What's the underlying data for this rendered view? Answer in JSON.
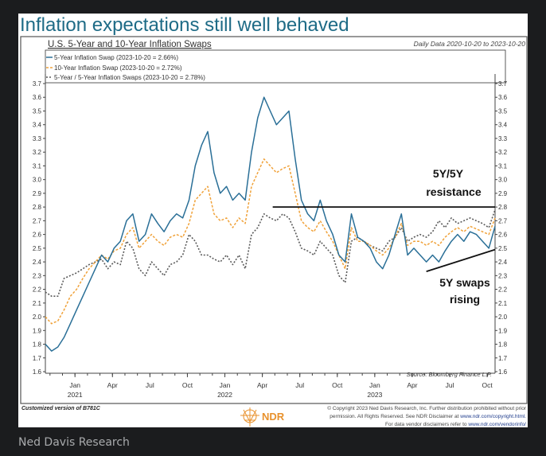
{
  "page": {
    "title": "Inflation expectations still well behaved",
    "caption": "Ned Davis Research",
    "colors": {
      "title": "#1e6b86",
      "five_year": "#2a6f97",
      "ten_year": "#f0a23a",
      "five_by_five": "#5a5a5a",
      "logo": "#e8912c",
      "link": "#1f3c8c"
    }
  },
  "chart_data": {
    "type": "line",
    "title": "U.S. 5-Year and 10-Year Inflation Swaps",
    "subtitle": "Daily Data 2020-10-20 to 2023-10-20",
    "xlabel": "",
    "ylabel": "",
    "ylim": [
      1.6,
      3.7
    ],
    "yticks": [
      "1.6",
      "1.7",
      "1.8",
      "1.9",
      "2.0",
      "2.1",
      "2.2",
      "2.3",
      "2.4",
      "2.5",
      "2.6",
      "2.7",
      "2.8",
      "2.9",
      "3.0",
      "3.1",
      "3.2",
      "3.3",
      "3.4",
      "3.5",
      "3.6",
      "3.7"
    ],
    "x_start": "2020-10-20",
    "x_step_months": 0.5,
    "x_range_months": [
      0,
      36
    ],
    "xticks": [
      {
        "month": "Jan",
        "year": "2021",
        "offset_months": 2.37
      },
      {
        "month": "Apr",
        "year": "",
        "offset_months": 5.37
      },
      {
        "month": "Jul",
        "year": "",
        "offset_months": 8.37
      },
      {
        "month": "Oct",
        "year": "",
        "offset_months": 11.37
      },
      {
        "month": "Jan",
        "year": "2022",
        "offset_months": 14.37
      },
      {
        "month": "Apr",
        "year": "",
        "offset_months": 17.37
      },
      {
        "month": "Jul",
        "year": "",
        "offset_months": 20.37
      },
      {
        "month": "Oct",
        "year": "",
        "offset_months": 23.37
      },
      {
        "month": "Jan",
        "year": "2023",
        "offset_months": 26.37
      },
      {
        "month": "Apr",
        "year": "",
        "offset_months": 29.37
      },
      {
        "month": "Jul",
        "year": "",
        "offset_months": 32.37
      },
      {
        "month": "Oct",
        "year": "",
        "offset_months": 35.37
      }
    ],
    "series": [
      {
        "name": "5-Year Inflation Swap (2023-10-20 = 2.66%)",
        "style": "solid",
        "values": [
          1.8,
          1.75,
          1.78,
          1.85,
          1.95,
          2.05,
          2.15,
          2.25,
          2.35,
          2.45,
          2.4,
          2.5,
          2.55,
          2.7,
          2.75,
          2.55,
          2.6,
          2.75,
          2.68,
          2.62,
          2.7,
          2.75,
          2.72,
          2.85,
          3.1,
          3.25,
          3.35,
          3.05,
          2.9,
          2.95,
          2.85,
          2.9,
          2.85,
          3.2,
          3.45,
          3.6,
          3.5,
          3.4,
          3.45,
          3.5,
          3.15,
          2.85,
          2.75,
          2.7,
          2.85,
          2.7,
          2.6,
          2.45,
          2.4,
          2.75,
          2.58,
          2.55,
          2.5,
          2.4,
          2.35,
          2.45,
          2.6,
          2.75,
          2.45,
          2.5,
          2.45,
          2.4,
          2.45,
          2.4,
          2.48,
          2.55,
          2.6,
          2.55,
          2.62,
          2.6,
          2.55,
          2.5,
          2.66
        ]
      },
      {
        "name": "10-Year Inflation Swap (2023-10-20 = 2.72%)",
        "style": "dashed",
        "values": [
          2.0,
          1.95,
          1.97,
          2.05,
          2.15,
          2.2,
          2.28,
          2.35,
          2.4,
          2.45,
          2.42,
          2.48,
          2.5,
          2.6,
          2.65,
          2.5,
          2.55,
          2.6,
          2.55,
          2.52,
          2.58,
          2.6,
          2.58,
          2.68,
          2.85,
          2.9,
          2.95,
          2.75,
          2.7,
          2.72,
          2.65,
          2.72,
          2.68,
          2.95,
          3.05,
          3.15,
          3.1,
          3.05,
          3.08,
          3.1,
          2.9,
          2.7,
          2.65,
          2.62,
          2.7,
          2.62,
          2.55,
          2.45,
          2.35,
          2.65,
          2.55,
          2.55,
          2.52,
          2.48,
          2.45,
          2.5,
          2.58,
          2.68,
          2.52,
          2.55,
          2.55,
          2.52,
          2.55,
          2.52,
          2.58,
          2.62,
          2.65,
          2.62,
          2.66,
          2.64,
          2.62,
          2.6,
          2.72
        ]
      },
      {
        "name": "5-Year / 5-Year Inflation Swaps (2023-10-20 = 2.78%)",
        "style": "dotted",
        "values": [
          2.18,
          2.15,
          2.15,
          2.28,
          2.3,
          2.32,
          2.35,
          2.38,
          2.4,
          2.42,
          2.35,
          2.4,
          2.38,
          2.55,
          2.5,
          2.35,
          2.3,
          2.4,
          2.35,
          2.3,
          2.38,
          2.4,
          2.45,
          2.6,
          2.55,
          2.45,
          2.45,
          2.42,
          2.4,
          2.45,
          2.38,
          2.45,
          2.35,
          2.6,
          2.65,
          2.75,
          2.72,
          2.7,
          2.75,
          2.72,
          2.62,
          2.5,
          2.48,
          2.45,
          2.55,
          2.5,
          2.45,
          2.3,
          2.25,
          2.55,
          2.58,
          2.55,
          2.52,
          2.5,
          2.48,
          2.55,
          2.58,
          2.65,
          2.55,
          2.58,
          2.6,
          2.58,
          2.62,
          2.7,
          2.65,
          2.72,
          2.68,
          2.7,
          2.72,
          2.7,
          2.68,
          2.65,
          2.78
        ]
      }
    ],
    "annotations": [
      {
        "label_line1": "5Y/5Y",
        "label_line2": "resistance",
        "line": {
          "from_months": 18.2,
          "to_months": 36,
          "from_value": 2.8,
          "to_value": 2.8
        }
      },
      {
        "label_line1": "5Y swaps",
        "label_line2": "rising",
        "line": {
          "from_months": 30.5,
          "to_months": 36,
          "from_value": 2.33,
          "to_value": 2.49
        }
      }
    ],
    "source": "Source:  Bloomberg Finance L.P.",
    "legend_placement": "top-left",
    "grid": false
  },
  "footer": {
    "version": "Customized version of B781C",
    "logo_text": "NDR",
    "copyright_line1": "© Copyright 2023 Ned Davis Research, Inc. Further distribution prohibited without prior",
    "copyright_line2": "permission. All Rights Reserved. See NDR Disclaimer at",
    "copyright_link1": "www.ndr.com/copyright.html.",
    "copyright_line3": "For data vendor disclaimers refer to",
    "copyright_link2": "www.ndr.com/vendorinfo/"
  }
}
